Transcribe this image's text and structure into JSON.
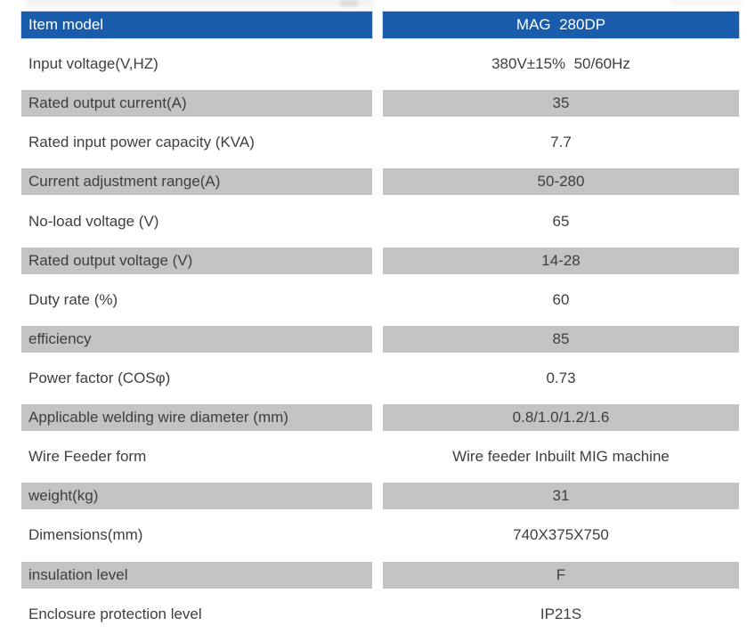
{
  "colors": {
    "header_bg": "#1a5cac",
    "header_text": "#ffffff",
    "shaded_row_bg": "#c3c3c3",
    "text": "#3e3e3e"
  },
  "table": {
    "header": {
      "label": "Item model",
      "value": "MAG  280DP"
    },
    "rows": [
      {
        "label": "Input voltage(V,HZ)",
        "value": "380V±15%  50/60Hz",
        "shaded": false
      },
      {
        "label": "Rated output current(A)",
        "value": "35",
        "shaded": true
      },
      {
        "label": "Rated input power capacity (KVA)",
        "value": "7.7",
        "shaded": false
      },
      {
        "label": "Current adjustment range(A)",
        "value": "50-280",
        "shaded": true
      },
      {
        "label": "No-load voltage (V)",
        "value": "65",
        "shaded": false
      },
      {
        "label": "Rated output voltage (V)",
        "value": "14-28",
        "shaded": true
      },
      {
        "label": "Duty rate (%)",
        "value": "60",
        "shaded": false
      },
      {
        "label": "efficiency",
        "value": "85",
        "shaded": true
      },
      {
        "label": "Power factor (COSφ)",
        "value": "0.73",
        "shaded": false
      },
      {
        "label": "Applicable welding wire diameter (mm)",
        "value": "0.8/1.0/1.2/1.6",
        "shaded": true
      },
      {
        "label": "Wire Feeder form",
        "value": "Wire feeder Inbuilt MIG machine",
        "shaded": false
      },
      {
        "label": "weight(kg)",
        "value": "31",
        "shaded": true
      },
      {
        "label": "Dimensions(mm)",
        "value": "740X375X750",
        "shaded": false
      },
      {
        "label": "insulation level",
        "value": "F",
        "shaded": true
      },
      {
        "label": "Enclosure protection level",
        "value": "IP21S",
        "shaded": false
      }
    ]
  }
}
